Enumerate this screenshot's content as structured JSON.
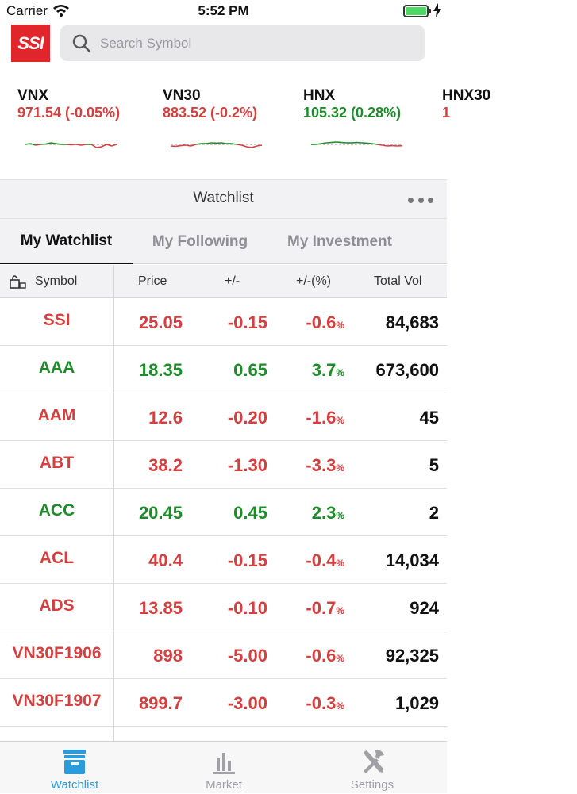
{
  "status_bar": {
    "carrier": "Carrier",
    "time": "5:52 PM"
  },
  "header": {
    "logo_text": "SSI",
    "search_placeholder": "Search Symbol"
  },
  "indices": [
    {
      "name": "VNX",
      "value": "971.54 (-0.05%)",
      "trend": "down",
      "spark": [
        0.5,
        0.55,
        0.45,
        0.5,
        0.52,
        0.6,
        0.55,
        0.5,
        0.5,
        0.48,
        0.5,
        0.45,
        0.5,
        0.5,
        0.3,
        0.35,
        0.5,
        0.4,
        0.5
      ]
    },
    {
      "name": "VN30",
      "value": "883.52 (-0.2%)",
      "trend": "down",
      "spark": [
        0.4,
        0.38,
        0.42,
        0.45,
        0.4,
        0.5,
        0.55,
        0.55,
        0.6,
        0.58,
        0.6,
        0.55,
        0.55,
        0.5,
        0.45,
        0.35,
        0.3,
        0.4,
        0.45
      ]
    },
    {
      "name": "HNX",
      "value": "105.32 (0.28%)",
      "trend": "up",
      "spark": [
        0.5,
        0.5,
        0.55,
        0.6,
        0.62,
        0.65,
        0.62,
        0.6,
        0.6,
        0.62,
        0.6,
        0.58,
        0.55,
        0.5,
        0.45,
        0.4,
        0.42,
        0.4,
        0.42
      ]
    },
    {
      "name": "HNX30",
      "value": "1",
      "trend": "down",
      "spark": []
    }
  ],
  "section": {
    "title": "Watchlist"
  },
  "tabs": [
    {
      "label": "My Watchlist",
      "active": true
    },
    {
      "label": "My Following",
      "active": false
    },
    {
      "label": "My Investment",
      "active": false
    }
  ],
  "columns": {
    "symbol": "Symbol",
    "price": "Price",
    "change": "+/-",
    "pct": "+/-(%)",
    "vol": "Total Vol"
  },
  "rows": [
    {
      "symbol": "SSI",
      "price": "25.05",
      "change": "-0.15",
      "pct": "-0.6",
      "vol": "84,683",
      "trend": "down"
    },
    {
      "symbol": "AAA",
      "price": "18.35",
      "change": "0.65",
      "pct": "3.7",
      "vol": "673,600",
      "trend": "up"
    },
    {
      "symbol": "AAM",
      "price": "12.6",
      "change": "-0.20",
      "pct": "-1.6",
      "vol": "45",
      "trend": "down"
    },
    {
      "symbol": "ABT",
      "price": "38.2",
      "change": "-1.30",
      "pct": "-3.3",
      "vol": "5",
      "trend": "down"
    },
    {
      "symbol": "ACC",
      "price": "20.45",
      "change": "0.45",
      "pct": "2.3",
      "vol": "2",
      "trend": "up"
    },
    {
      "symbol": "ACL",
      "price": "40.4",
      "change": "-0.15",
      "pct": "-0.4",
      "vol": "14,034",
      "trend": "down"
    },
    {
      "symbol": "ADS",
      "price": "13.85",
      "change": "-0.10",
      "pct": "-0.7",
      "vol": "924",
      "trend": "down"
    },
    {
      "symbol": "VN30F1906",
      "price": "898",
      "change": "-5.00",
      "pct": "-0.6",
      "vol": "92,325",
      "trend": "down"
    },
    {
      "symbol": "VN30F1907",
      "price": "899.7",
      "change": "-3.00",
      "pct": "-0.3",
      "vol": "1,029",
      "trend": "down"
    }
  ],
  "pct_suffix": "%",
  "tabbar": [
    {
      "label": "Watchlist",
      "icon": "watchlist-box-icon",
      "active": true
    },
    {
      "label": "Market",
      "icon": "bar-chart-icon",
      "active": false
    },
    {
      "label": "Settings",
      "icon": "tools-icon",
      "active": false
    }
  ],
  "colors": {
    "up": "#1e8a2a",
    "down": "#d43f3f",
    "brand": "#e0252b",
    "accent": "#2d9ad9"
  }
}
